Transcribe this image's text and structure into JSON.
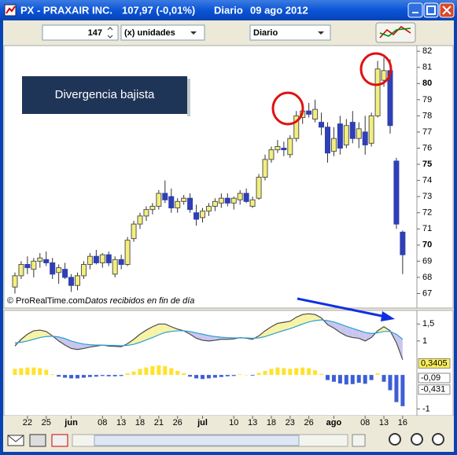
{
  "window": {
    "title": "PX - PRAXAIR INC.",
    "quote": "107,97 (-0,01%)",
    "period": "Diario",
    "date": "09 ago 2012"
  },
  "toolbar": {
    "units_value": "147",
    "units_label": "(x) unidades",
    "timeframe": "Diario"
  },
  "annotation": "Divergencia bajista",
  "credit": "© ProRealTime.com",
  "credit_note": "Datos recibidos en fin de día",
  "chart_data": [
    {
      "type": "candlestick",
      "up_color": "#f4ef7c",
      "down_color": "#2f3fb5",
      "open": [
        67.4,
        68.1,
        68.8,
        68.5,
        69.0,
        69.1,
        68.9,
        68.3,
        68.5,
        68.0,
        67.5,
        68.1,
        68.8,
        69.3,
        68.9,
        69.4,
        68.2,
        69.1,
        68.8,
        70.4,
        71.3,
        71.8,
        72.2,
        72.4,
        73.2,
        73.0,
        72.3,
        72.7,
        72.9,
        72.0,
        71.7,
        72.1,
        72.4,
        72.6,
        72.9,
        72.6,
        72.8,
        73.2,
        72.4,
        72.9,
        74.2,
        75.3,
        75.9,
        76.0,
        75.6,
        76.6,
        77.9,
        78.3,
        77.8,
        77.6,
        77.3,
        75.8,
        77.5,
        76.2,
        77.6,
        76.6,
        77.0,
        76.3,
        78.0,
        80.2,
        80.8,
        75.2,
        70.8
      ],
      "high": [
        68.3,
        69.0,
        69.3,
        69.2,
        69.5,
        69.6,
        69.2,
        68.8,
        68.9,
        68.2,
        68.3,
        69.0,
        69.5,
        69.7,
        69.5,
        69.6,
        69.3,
        69.4,
        70.5,
        71.5,
        72.0,
        72.4,
        72.6,
        73.4,
        74.0,
        73.5,
        72.9,
        73.1,
        73.2,
        72.5,
        72.3,
        72.6,
        72.9,
        73.2,
        73.2,
        73.0,
        73.4,
        73.5,
        73.0,
        74.4,
        75.6,
        76.1,
        76.5,
        76.4,
        76.8,
        78.3,
        78.6,
        78.8,
        79.0,
        78.2,
        77.6,
        77.3,
        78.0,
        77.8,
        78.3,
        77.6,
        78.0,
        78.2,
        81.4,
        81.6,
        81.5,
        75.4,
        70.9
      ],
      "low": [
        67.0,
        67.9,
        68.2,
        68.0,
        68.6,
        68.7,
        67.9,
        67.6,
        67.9,
        67.1,
        67.2,
        67.9,
        68.5,
        68.8,
        68.6,
        68.7,
        68.0,
        68.5,
        68.7,
        70.2,
        71.0,
        71.5,
        71.9,
        72.2,
        72.6,
        72.0,
        72.0,
        72.5,
        72.0,
        71.2,
        71.4,
        71.8,
        72.1,
        72.3,
        72.4,
        72.2,
        72.5,
        72.6,
        72.3,
        72.8,
        74.0,
        75.1,
        75.7,
        75.5,
        75.4,
        76.4,
        77.5,
        77.9,
        77.6,
        76.8,
        75.1,
        75.5,
        75.6,
        76.0,
        76.3,
        76.0,
        75.6,
        76.1,
        77.9,
        79.8,
        76.9,
        71.0,
        68.2
      ],
      "close": [
        68.1,
        68.8,
        68.6,
        69.0,
        69.2,
        68.9,
        68.2,
        68.6,
        68.0,
        67.5,
        68.1,
        68.8,
        69.3,
        68.9,
        69.4,
        68.9,
        69.1,
        68.8,
        70.3,
        71.3,
        71.8,
        72.2,
        72.4,
        73.2,
        72.8,
        72.3,
        72.7,
        72.9,
        72.2,
        71.6,
        72.1,
        72.4,
        72.7,
        72.9,
        72.6,
        72.9,
        73.2,
        72.7,
        72.8,
        74.2,
        75.3,
        75.9,
        76.1,
        75.9,
        76.6,
        78.0,
        78.3,
        78.1,
        78.4,
        77.3,
        75.7,
        76.6,
        76.0,
        77.4,
        76.6,
        77.2,
        76.2,
        78.0,
        80.9,
        80.8,
        77.4,
        71.3,
        69.4
      ],
      "ylim": [
        66.1,
        82.35
      ],
      "yticks": [
        67,
        68,
        69,
        70,
        71,
        72,
        73,
        74,
        75,
        76,
        77,
        78,
        79,
        80,
        81,
        82
      ]
    },
    {
      "type": "macd",
      "categories": [
        null,
        null,
        "22",
        null,
        null,
        "25",
        null,
        null,
        null,
        "jun",
        null,
        null,
        null,
        null,
        "08",
        null,
        null,
        "13",
        null,
        null,
        "18",
        null,
        null,
        "21",
        null,
        null,
        "26",
        null,
        null,
        null,
        "jul",
        null,
        null,
        null,
        null,
        "10",
        null,
        null,
        "13",
        null,
        null,
        "18",
        null,
        null,
        "23",
        null,
        null,
        "26",
        null,
        null,
        null,
        "ago",
        null,
        null,
        null,
        null,
        "08",
        null,
        null,
        "13",
        null,
        null,
        "16"
      ],
      "series": [
        {
          "color": "#4a4a4a",
          "values": [
            0.85,
            1.05,
            1.2,
            1.3,
            1.32,
            1.28,
            1.15,
            1.0,
            0.88,
            0.78,
            0.75,
            0.78,
            0.82,
            0.85,
            0.88,
            0.85,
            0.84,
            0.83,
            0.92,
            1.05,
            1.2,
            1.32,
            1.42,
            1.5,
            1.5,
            1.42,
            1.35,
            1.3,
            1.2,
            1.08,
            1.02,
            1.0,
            1.02,
            1.05,
            1.05,
            1.06,
            1.1,
            1.08,
            1.05,
            1.15,
            1.3,
            1.42,
            1.52,
            1.55,
            1.58,
            1.7,
            1.78,
            1.8,
            1.78,
            1.68,
            1.48,
            1.38,
            1.25,
            1.15,
            1.1,
            1.08,
            1.0,
            1.1,
            1.3,
            1.42,
            1.3,
            0.95,
            0.45
          ]
        },
        {
          "color": "#2a9fd6",
          "values": [
            0.95,
            0.96,
            1.0,
            1.05,
            1.1,
            1.13,
            1.14,
            1.12,
            1.07,
            1.0,
            0.95,
            0.91,
            0.89,
            0.88,
            0.88,
            0.87,
            0.87,
            0.86,
            0.87,
            0.9,
            0.96,
            1.03,
            1.1,
            1.18,
            1.25,
            1.28,
            1.3,
            1.3,
            1.28,
            1.24,
            1.2,
            1.16,
            1.13,
            1.11,
            1.1,
            1.09,
            1.09,
            1.09,
            1.08,
            1.09,
            1.13,
            1.19,
            1.25,
            1.31,
            1.36,
            1.43,
            1.5,
            1.56,
            1.6,
            1.62,
            1.6,
            1.56,
            1.5,
            1.43,
            1.37,
            1.31,
            1.25,
            1.22,
            1.24,
            1.28,
            1.28,
            1.2,
            1.05
          ]
        }
      ],
      "fill_above": "#f7f3a6",
      "fill_below": "#c9c6ee",
      "histogram": {
        "up_color": "#ffe22e",
        "down_color": "#3d5ed6",
        "values": [
          0.18,
          0.2,
          0.22,
          0.22,
          0.2,
          0.15,
          0.02,
          -0.05,
          -0.08,
          -0.1,
          -0.1,
          -0.08,
          -0.06,
          -0.05,
          -0.03,
          -0.04,
          -0.04,
          -0.03,
          0.05,
          0.1,
          0.18,
          0.22,
          0.26,
          0.28,
          0.26,
          0.2,
          0.12,
          0.05,
          -0.05,
          -0.1,
          -0.12,
          -0.1,
          -0.08,
          -0.06,
          -0.04,
          -0.03,
          0.02,
          0.0,
          -0.02,
          0.06,
          0.12,
          0.18,
          0.22,
          0.2,
          0.18,
          0.2,
          0.22,
          0.2,
          0.14,
          0.03,
          -0.15,
          -0.2,
          -0.25,
          -0.28,
          -0.27,
          -0.23,
          -0.26,
          -0.15,
          0.05,
          -0.2,
          -0.45,
          -0.8,
          -0.92
        ]
      },
      "readouts": [
        {
          "value": 0.3405,
          "label": "0,3405",
          "color": "#ffef5a"
        },
        {
          "value": -0.09,
          "label": "-0,09",
          "color": "#ffffff"
        },
        {
          "value": -0.431,
          "label": "-0,431",
          "color": "#ffffff"
        }
      ],
      "ylim": [
        -1.2,
        1.9
      ],
      "yticks": [
        {
          "value": 1.5,
          "label": "1,5"
        },
        1,
        {
          "value": -1,
          "label": "-1"
        }
      ]
    }
  ]
}
